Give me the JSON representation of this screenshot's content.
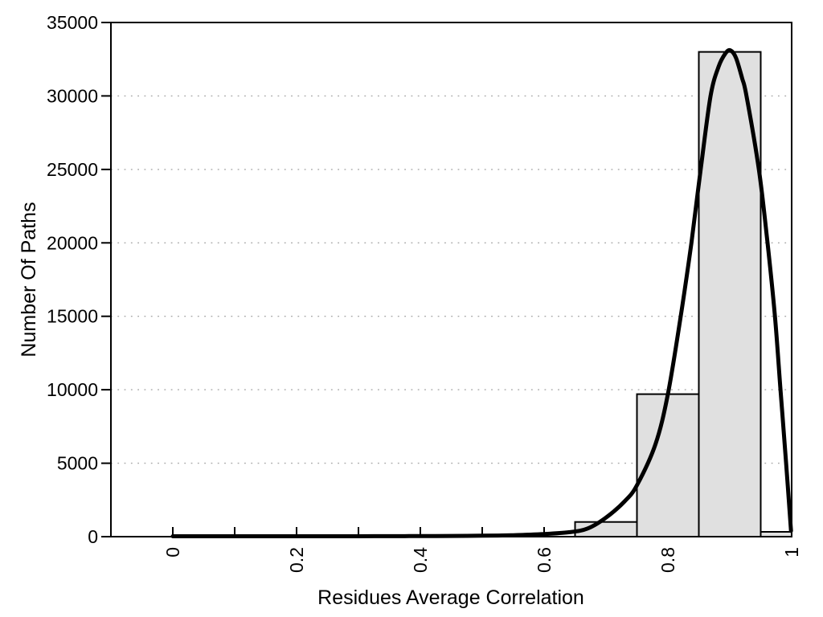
{
  "chart_data": {
    "type": "bar",
    "subtype": "histogram_with_fit_curve",
    "title": "",
    "xlabel": "Residues Average Correlation",
    "ylabel": "Number Of Paths",
    "xlim": [
      -0.1,
      1.0
    ],
    "ylim": [
      0,
      35000
    ],
    "grid": "horizontal dotted gridlines at major y ticks",
    "legend_position": "none",
    "xticks": {
      "values": [
        0,
        0.1,
        0.2,
        0.3,
        0.4,
        0.5,
        0.6,
        0.7,
        0.8,
        0.9,
        1.0
      ],
      "label_values": [
        0,
        0.2,
        0.4,
        0.6,
        0.8,
        1.0
      ],
      "labels": [
        "0",
        "0.2",
        "0.4",
        "0.6",
        "0.8",
        "1"
      ],
      "label_rotation_deg": -90
    },
    "yticks": {
      "values": [
        0,
        5000,
        10000,
        15000,
        20000,
        25000,
        30000,
        35000
      ],
      "labels": [
        "0",
        "5000",
        "10000",
        "15000",
        "20000",
        "25000",
        "30000",
        "35000"
      ]
    },
    "histogram": {
      "bin_edges": [
        0.65,
        0.75,
        0.85,
        0.95,
        1.0
      ],
      "counts": [
        1000,
        9700,
        33000,
        330
      ]
    },
    "curve": {
      "description": "smooth fitted distribution curve, flat near zero until x~0.55, peak ~33100 at x~0.90, drops to ~0 at x=1.0",
      "points": [
        [
          0.0,
          30
        ],
        [
          0.05,
          30
        ],
        [
          0.1,
          30
        ],
        [
          0.15,
          30
        ],
        [
          0.2,
          30
        ],
        [
          0.25,
          30
        ],
        [
          0.3,
          30
        ],
        [
          0.35,
          35
        ],
        [
          0.4,
          40
        ],
        [
          0.45,
          50
        ],
        [
          0.5,
          65
        ],
        [
          0.55,
          100
        ],
        [
          0.6,
          180
        ],
        [
          0.64,
          300
        ],
        [
          0.67,
          550
        ],
        [
          0.7,
          1300
        ],
        [
          0.73,
          2400
        ],
        [
          0.75,
          3500
        ],
        [
          0.78,
          6300
        ],
        [
          0.8,
          9700
        ],
        [
          0.82,
          14800
        ],
        [
          0.838,
          20000
        ],
        [
          0.853,
          25000
        ],
        [
          0.869,
          30000
        ],
        [
          0.882,
          32000
        ],
        [
          0.893,
          32900
        ],
        [
          0.901,
          33100
        ],
        [
          0.91,
          32600
        ],
        [
          0.92,
          31200
        ],
        [
          0.927,
          30000
        ],
        [
          0.947,
          25000
        ],
        [
          0.961,
          20000
        ],
        [
          0.973,
          15000
        ],
        [
          0.982,
          10000
        ],
        [
          0.991,
          5000
        ],
        [
          0.999,
          400
        ]
      ]
    },
    "colors": {
      "background": "#ffffff",
      "bar_fill": "#e0e0e0",
      "bar_border": "#000000",
      "curve": "#000000",
      "grid": "#a8a8a8",
      "text": "#000000"
    }
  }
}
